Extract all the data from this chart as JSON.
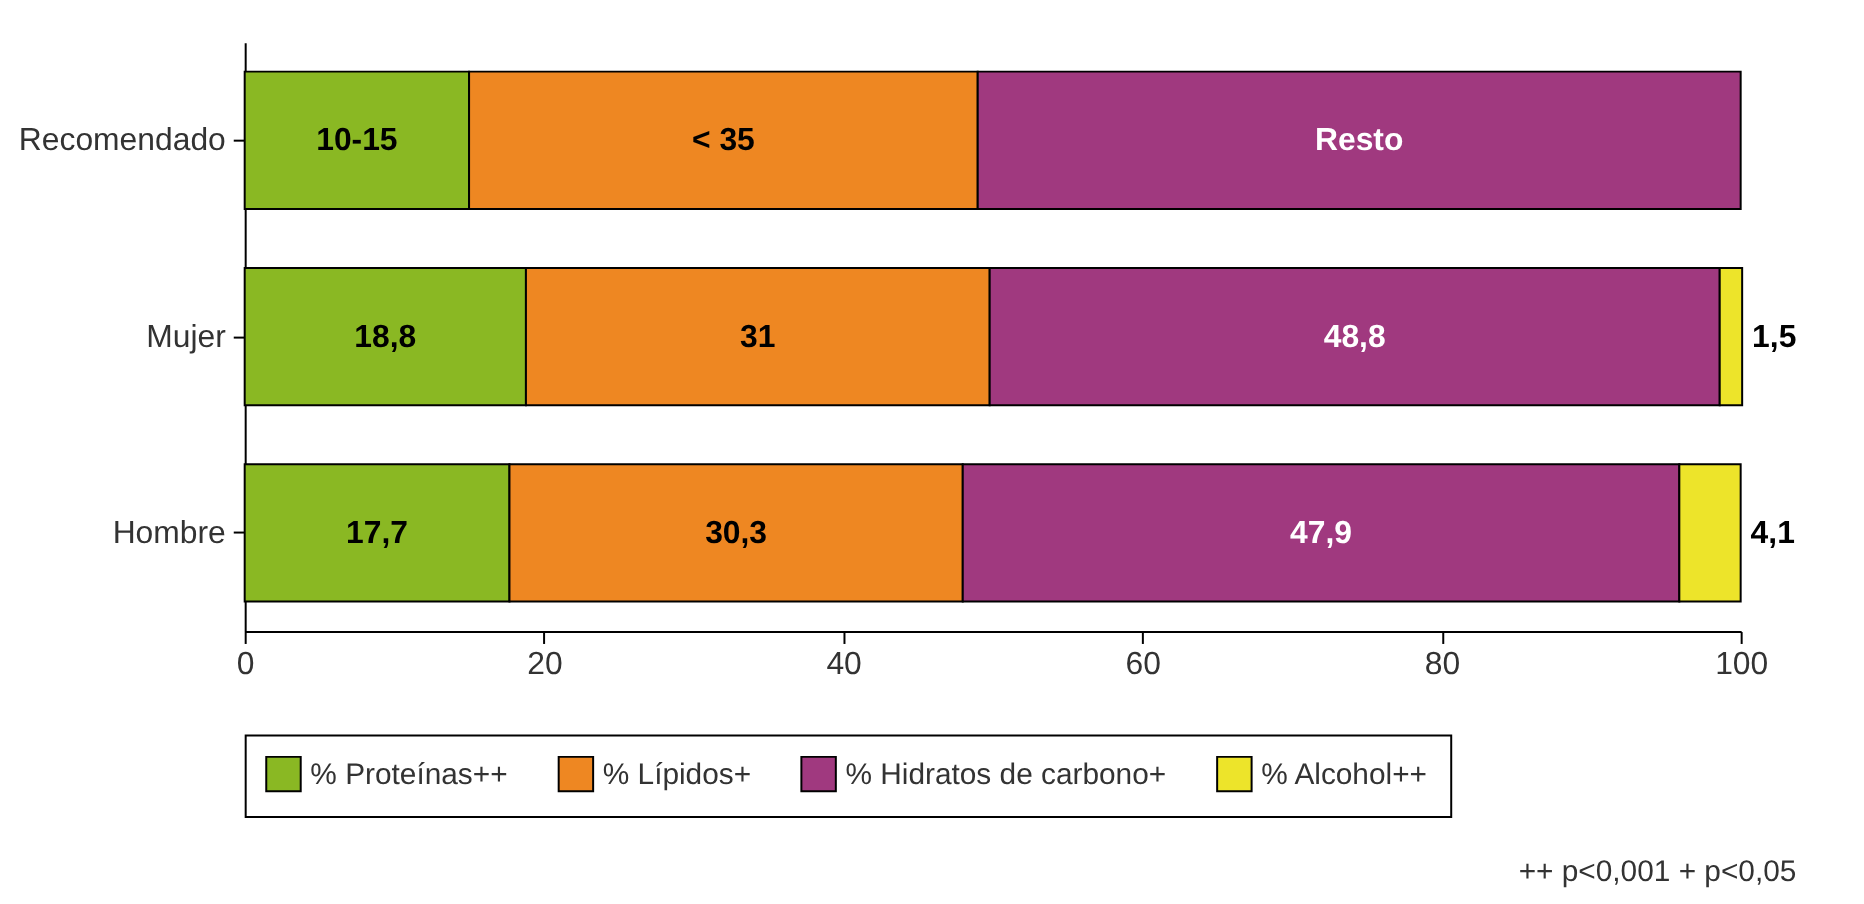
{
  "chart_data": {
    "type": "bar",
    "orientation": "horizontal",
    "stacked": true,
    "categories": [
      "Recomendado",
      "Mujer",
      "Hombre"
    ],
    "series": [
      {
        "name": "% Proteínas++",
        "color": "#8ab823",
        "values": [
          15,
          18.8,
          17.7
        ],
        "value_labels": [
          "10-15",
          "18,8",
          "17,7"
        ]
      },
      {
        "name": "% Lípidos+",
        "color": "#ee8722",
        "values": [
          34,
          31,
          30.3
        ],
        "value_labels": [
          "< 35",
          "31",
          "30,3"
        ]
      },
      {
        "name": "% Hidratos de carbono+",
        "color": "#a0397f",
        "values": [
          51,
          48.8,
          47.9
        ],
        "value_labels": [
          "Resto",
          "48,8",
          "47,9"
        ]
      },
      {
        "name": "% Alcohol++",
        "color": "#ede42a",
        "values": [
          null,
          1.5,
          4.1
        ],
        "value_labels": [
          null,
          "1,5",
          "4,1"
        ]
      }
    ],
    "xlim": [
      0,
      100
    ],
    "xticks": [
      0,
      20,
      40,
      60,
      80,
      100
    ],
    "grid": false,
    "legend": "bottom",
    "annotations": [
      "++ p<0,001   + p<0,05"
    ]
  }
}
